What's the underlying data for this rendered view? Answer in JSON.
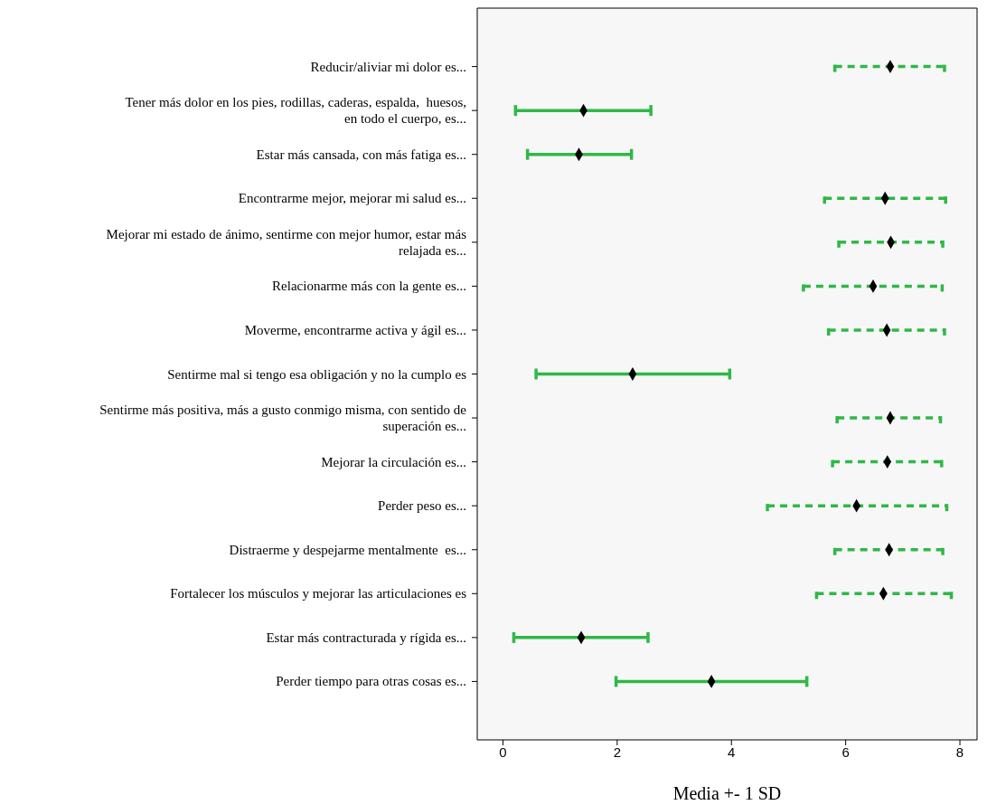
{
  "chart_data": {
    "type": "scatter",
    "orientation": "horizontal",
    "xlabel": "Media +- 1 SD",
    "categories": [
      "Reducir/aliviar mi dolor es...",
      "Tener más dolor en los pies, rodillas, caderas, espalda,  huesos, en todo el cuerpo, es...",
      "Estar más cansada, con más fatiga es...",
      "Encontrarme mejor, mejorar mi salud es...",
      "Mejorar mi estado de ánimo, sentirme con mejor humor, estar más relajada es...",
      "Relacionarme más con la gente es...",
      "Moverme, encontrarme activa y ágil es...",
      "Sentirme mal si tengo esa obligación y no la cumplo es",
      "Sentirme más positiva, más a gusto conmigo misma, con sentido de superación es...",
      "Mejorar la circulación es...",
      "Perder peso es...",
      "Distraerme y despejarme mentalmente  es...",
      "Fortalecer los músculos y mejorar las articulaciones es",
      "Estar más contracturada y rígida es...",
      "Perder tiempo para otras cosas es..."
    ],
    "series": [
      {
        "color": "#000000",
        "line_style": "dashed",
        "values": [
          6.78,
          null,
          null,
          6.69,
          6.79,
          6.48,
          6.72,
          null,
          6.78,
          6.73,
          6.19,
          6.76,
          6.66,
          null,
          null
        ],
        "errors": [
          [
            5.81,
            7.73
          ],
          null,
          null,
          [
            5.63,
            7.75
          ],
          [
            5.88,
            7.7
          ],
          [
            5.26,
            7.69
          ],
          [
            5.7,
            7.73
          ],
          null,
          [
            5.85,
            7.66
          ],
          [
            5.77,
            7.68
          ],
          [
            4.63,
            7.77
          ],
          [
            5.81,
            7.7
          ],
          [
            5.49,
            7.85
          ],
          null,
          null
        ]
      },
      {
        "color": "#000000",
        "line_style": "solid",
        "values": [
          null,
          1.41,
          1.33,
          null,
          null,
          null,
          null,
          2.27,
          null,
          null,
          null,
          null,
          null,
          1.37,
          3.65
        ],
        "errors": [
          null,
          [
            0.22,
            2.59
          ],
          [
            0.43,
            2.25
          ],
          null,
          null,
          null,
          null,
          [
            0.58,
            3.97
          ],
          null,
          null,
          null,
          null,
          null,
          [
            0.19,
            2.54
          ],
          [
            1.98,
            5.32
          ]
        ]
      }
    ],
    "marker": "diamond",
    "xlim": [
      -0.45,
      8.3
    ],
    "xticks": [
      0,
      2,
      4,
      6,
      8
    ],
    "grid": false,
    "legend": false
  }
}
